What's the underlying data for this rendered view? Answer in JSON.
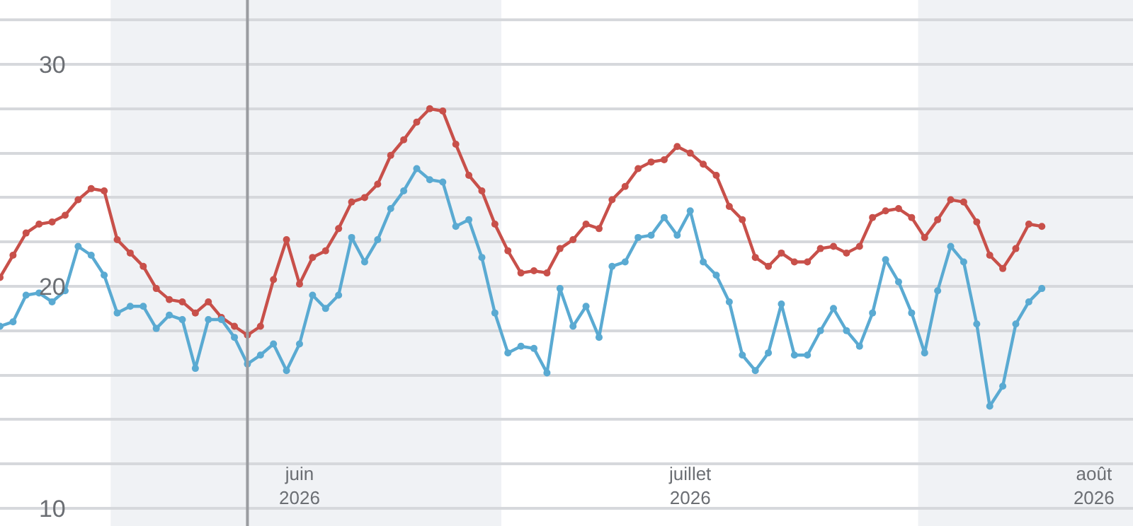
{
  "chart_data": {
    "type": "line",
    "x": [
      "2026-05-09",
      "2026-05-10",
      "2026-05-11",
      "2026-05-12",
      "2026-05-13",
      "2026-05-14",
      "2026-05-15",
      "2026-05-16",
      "2026-05-17",
      "2026-05-18",
      "2026-05-19",
      "2026-05-20",
      "2026-05-21",
      "2026-05-22",
      "2026-05-23",
      "2026-05-24",
      "2026-05-25",
      "2026-05-26",
      "2026-05-27",
      "2026-05-28",
      "2026-05-29",
      "2026-05-30",
      "2026-05-31",
      "2026-06-01",
      "2026-06-02",
      "2026-06-03",
      "2026-06-04",
      "2026-06-05",
      "2026-06-06",
      "2026-06-07",
      "2026-06-08",
      "2026-06-09",
      "2026-06-10",
      "2026-06-11",
      "2026-06-12",
      "2026-06-13",
      "2026-06-14",
      "2026-06-15",
      "2026-06-16",
      "2026-06-17",
      "2026-06-18",
      "2026-06-19",
      "2026-06-20",
      "2026-06-21",
      "2026-06-22",
      "2026-06-23",
      "2026-06-24",
      "2026-06-25",
      "2026-06-26",
      "2026-06-27",
      "2026-06-28",
      "2026-06-29",
      "2026-06-30",
      "2026-07-01",
      "2026-07-02",
      "2026-07-03",
      "2026-07-04",
      "2026-07-05",
      "2026-07-06",
      "2026-07-07",
      "2026-07-08",
      "2026-07-09",
      "2026-07-10",
      "2026-07-11",
      "2026-07-12",
      "2026-07-13",
      "2026-07-14",
      "2026-07-15",
      "2026-07-16",
      "2026-07-17",
      "2026-07-18",
      "2026-07-19",
      "2026-07-20",
      "2026-07-21",
      "2026-07-22",
      "2026-07-23",
      "2026-07-24",
      "2026-07-25",
      "2026-07-26",
      "2026-07-27",
      "2026-07-28"
    ],
    "series": [
      {
        "color": "#c8504a",
        "values": [
          20.4,
          21.4,
          22.4,
          22.8,
          22.9,
          23.2,
          23.9,
          24.4,
          24.3,
          22.1,
          21.5,
          20.9,
          19.9,
          19.4,
          19.3,
          18.8,
          19.3,
          18.6,
          18.2,
          17.8,
          18.2,
          20.3,
          22.1,
          20.1,
          21.3,
          21.6,
          22.6,
          23.8,
          24.0,
          24.6,
          25.9,
          26.6,
          27.4,
          28.0,
          27.9,
          26.4,
          25.0,
          24.3,
          22.8,
          21.6,
          20.6,
          20.7,
          20.6,
          21.7,
          22.1,
          22.8,
          22.6,
          23.9,
          24.5,
          25.3,
          25.6,
          25.7,
          26.3,
          26.0,
          25.5,
          25.0,
          23.6,
          23.0,
          21.3,
          20.9,
          21.5,
          21.1,
          21.1,
          21.7,
          21.8,
          21.5,
          21.8,
          23.1,
          23.4,
          23.5,
          23.1,
          22.2,
          23.0,
          23.9,
          23.8,
          22.9,
          21.4,
          20.8,
          21.7,
          22.8,
          22.7
        ]
      },
      {
        "color": "#5aaad2",
        "values": [
          18.2,
          18.4,
          19.6,
          19.7,
          19.3,
          19.8,
          21.8,
          21.4,
          20.5,
          18.8,
          19.1,
          19.1,
          18.1,
          18.7,
          18.5,
          16.3,
          18.5,
          18.5,
          17.7,
          16.5,
          16.9,
          17.4,
          16.2,
          17.4,
          19.6,
          19.0,
          19.6,
          22.2,
          21.1,
          22.1,
          23.5,
          24.3,
          25.3,
          24.8,
          24.7,
          22.7,
          23.0,
          21.3,
          18.8,
          17.0,
          17.3,
          17.2,
          16.1,
          19.9,
          18.2,
          19.1,
          17.7,
          20.9,
          21.1,
          22.2,
          22.3,
          23.1,
          22.3,
          23.4,
          21.1,
          20.5,
          19.3,
          16.9,
          16.2,
          17.0,
          19.2,
          16.9,
          16.9,
          18.0,
          19.0,
          18.0,
          17.3,
          18.8,
          21.2,
          20.2,
          18.8,
          17.0,
          19.8,
          21.8,
          21.1,
          18.3,
          14.6,
          15.5,
          18.3,
          19.3,
          19.9
        ]
      }
    ],
    "xlim": [
      "2026-05-09",
      "2026-08-04"
    ],
    "xticks": [
      {
        "value": "2026-06-01",
        "label": "juin\n2026"
      },
      {
        "value": "2026-07-01",
        "label": "juillet\n2026"
      },
      {
        "value": "2026-08-01",
        "label": "août\n2026"
      }
    ],
    "ylim": [
      9.2,
      32.9
    ],
    "yticks": [
      10,
      {
        "value": 12,
        "label": null
      },
      {
        "value": 14,
        "label": null
      },
      {
        "value": 16,
        "label": null
      },
      {
        "value": 18,
        "label": null
      },
      20,
      {
        "value": 22,
        "label": null
      },
      {
        "value": 24,
        "label": null
      },
      {
        "value": 26,
        "label": null
      },
      {
        "value": 28,
        "label": null
      },
      30,
      {
        "value": 32,
        "label": null
      }
    ],
    "ref_lines": [
      {
        "axis": "x",
        "value": "2026-05-28",
        "color": "#9a9ca0"
      }
    ],
    "bands": [
      {
        "axis": "x",
        "from": "2026-05-17T12:00",
        "to": "2026-06-16T12:00",
        "color": "#f0f2f5"
      },
      {
        "axis": "x",
        "from": "2026-07-18T12:00",
        "to": "2026-08-04",
        "color": "#f0f2f5"
      }
    ],
    "grid": "y",
    "marker": "circle",
    "line_style": "solid"
  }
}
